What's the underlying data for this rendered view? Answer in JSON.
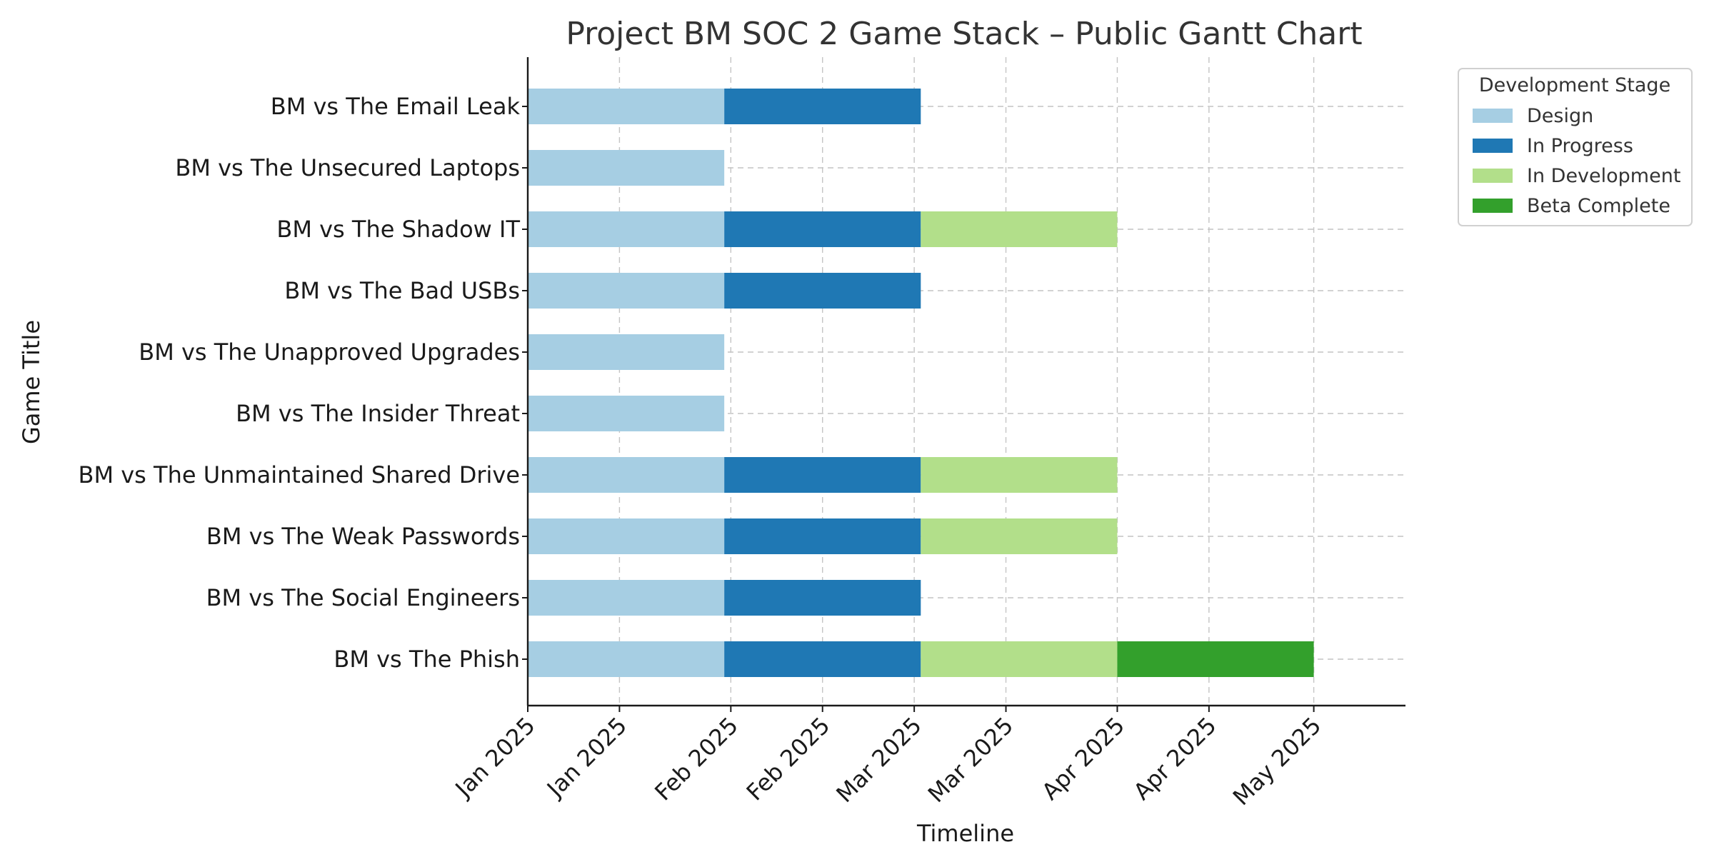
{
  "chart_data": {
    "type": "gantt",
    "title": "Project BM SOC 2 Game Stack – Public Gantt Chart",
    "xlabel": "Timeline",
    "ylabel": "Game Title",
    "grid": true,
    "legend": {
      "title": "Development Stage",
      "placement": "outside-top-right",
      "entries": [
        {
          "name": "Design",
          "color": "#a6cee3"
        },
        {
          "name": "In Progress",
          "color": "#1f78b4"
        },
        {
          "name": "In Development",
          "color": "#b2df8a"
        },
        {
          "name": "Beta Complete",
          "color": "#33a02c"
        }
      ]
    },
    "x_range": [
      "2025-01-01",
      "2025-05-15"
    ],
    "x_ticks": [
      {
        "date": "2025-01-01",
        "label": "Jan 2025"
      },
      {
        "date": "2025-01-15",
        "label": "Jan 2025"
      },
      {
        "date": "2025-02-01",
        "label": "Feb 2025"
      },
      {
        "date": "2025-02-15",
        "label": "Feb 2025"
      },
      {
        "date": "2025-03-01",
        "label": "Mar 2025"
      },
      {
        "date": "2025-03-15",
        "label": "Mar 2025"
      },
      {
        "date": "2025-04-01",
        "label": "Apr 2025"
      },
      {
        "date": "2025-04-15",
        "label": "Apr 2025"
      },
      {
        "date": "2025-05-01",
        "label": "May 2025"
      }
    ],
    "stage_ranges": {
      "Design": [
        "2025-01-01",
        "2025-01-31"
      ],
      "In Progress": [
        "2025-01-31",
        "2025-03-02"
      ],
      "In Development": [
        "2025-03-02",
        "2025-04-01"
      ],
      "Beta Complete": [
        "2025-04-01",
        "2025-05-01"
      ]
    },
    "tasks": [
      {
        "name": "BM vs The Email Leak",
        "stages": [
          "Design",
          "In Progress"
        ]
      },
      {
        "name": "BM vs The Unsecured Laptops",
        "stages": [
          "Design"
        ]
      },
      {
        "name": "BM vs The Shadow IT",
        "stages": [
          "Design",
          "In Progress",
          "In Development"
        ]
      },
      {
        "name": "BM vs The Bad USBs",
        "stages": [
          "Design",
          "In Progress"
        ]
      },
      {
        "name": "BM vs The Unapproved Upgrades",
        "stages": [
          "Design"
        ]
      },
      {
        "name": "BM vs The Insider Threat",
        "stages": [
          "Design"
        ]
      },
      {
        "name": "BM vs The Unmaintained Shared Drive",
        "stages": [
          "Design",
          "In Progress",
          "In Development"
        ]
      },
      {
        "name": "BM vs The Weak Passwords",
        "stages": [
          "Design",
          "In Progress",
          "In Development"
        ]
      },
      {
        "name": "BM vs The Social Engineers",
        "stages": [
          "Design",
          "In Progress"
        ]
      },
      {
        "name": "BM vs The Phish",
        "stages": [
          "Design",
          "In Progress",
          "In Development",
          "Beta Complete"
        ]
      }
    ]
  }
}
